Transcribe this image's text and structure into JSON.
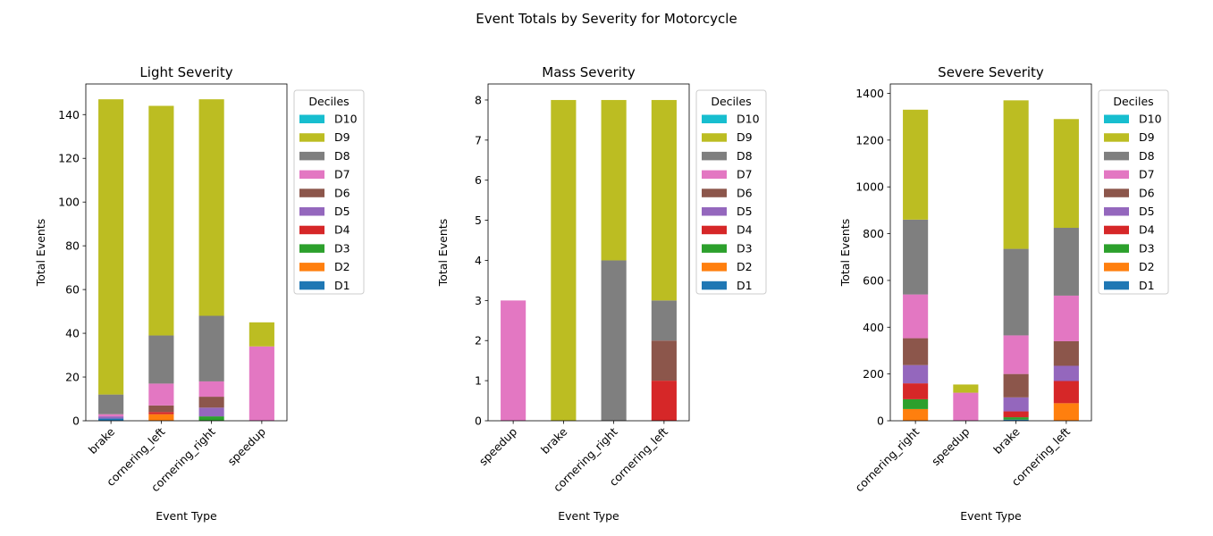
{
  "figure": {
    "title": "Event Totals by Severity for Motorcycle"
  },
  "chart_data": [
    {
      "type": "bar",
      "stacked": true,
      "title": "Light Severity",
      "xlabel": "Event Type",
      "ylabel": "Total Events",
      "ylim": [
        0,
        154
      ],
      "yticks": [
        0,
        20,
        40,
        60,
        80,
        100,
        120,
        140
      ],
      "categories": [
        "brake",
        "cornering_left",
        "cornering_right",
        "speedup"
      ],
      "legend": {
        "title": "Deciles",
        "placement": "outside-right"
      },
      "series": [
        {
          "name": "D1",
          "color": "#1f77b4",
          "values": [
            1,
            0,
            0,
            0
          ]
        },
        {
          "name": "D2",
          "color": "#ff7f0e",
          "values": [
            0,
            3,
            0,
            0
          ]
        },
        {
          "name": "D3",
          "color": "#2ca02c",
          "values": [
            0,
            0,
            2,
            0
          ]
        },
        {
          "name": "D4",
          "color": "#d62728",
          "values": [
            0,
            1,
            0,
            0
          ]
        },
        {
          "name": "D5",
          "color": "#9467bd",
          "values": [
            1,
            0,
            4,
            0
          ]
        },
        {
          "name": "D6",
          "color": "#8c564b",
          "values": [
            0,
            3,
            5,
            0
          ]
        },
        {
          "name": "D7",
          "color": "#e377c2",
          "values": [
            1,
            10,
            7,
            34
          ]
        },
        {
          "name": "D8",
          "color": "#7f7f7f",
          "values": [
            9,
            22,
            30,
            0
          ]
        },
        {
          "name": "D9",
          "color": "#bcbd22",
          "values": [
            135,
            105,
            99,
            11
          ]
        },
        {
          "name": "D10",
          "color": "#17becf",
          "values": [
            0,
            0,
            0,
            0
          ]
        }
      ]
    },
    {
      "type": "bar",
      "stacked": true,
      "title": "Mass Severity",
      "xlabel": "Event Type",
      "ylabel": "Total Events",
      "ylim": [
        0,
        8.4
      ],
      "yticks": [
        0,
        1,
        2,
        3,
        4,
        5,
        6,
        7,
        8
      ],
      "categories": [
        "speedup",
        "brake",
        "cornering_right",
        "cornering_left"
      ],
      "legend": {
        "title": "Deciles",
        "placement": "outside-right"
      },
      "series": [
        {
          "name": "D1",
          "color": "#1f77b4",
          "values": [
            0,
            0,
            0,
            0
          ]
        },
        {
          "name": "D2",
          "color": "#ff7f0e",
          "values": [
            0,
            0,
            0,
            0
          ]
        },
        {
          "name": "D3",
          "color": "#2ca02c",
          "values": [
            0,
            0,
            0,
            0
          ]
        },
        {
          "name": "D4",
          "color": "#d62728",
          "values": [
            0,
            0,
            0,
            1
          ]
        },
        {
          "name": "D5",
          "color": "#9467bd",
          "values": [
            0,
            0,
            0,
            0
          ]
        },
        {
          "name": "D6",
          "color": "#8c564b",
          "values": [
            0,
            0,
            0,
            1
          ]
        },
        {
          "name": "D7",
          "color": "#e377c2",
          "values": [
            3,
            0,
            0,
            0
          ]
        },
        {
          "name": "D8",
          "color": "#7f7f7f",
          "values": [
            0,
            0,
            4,
            1
          ]
        },
        {
          "name": "D9",
          "color": "#bcbd22",
          "values": [
            0,
            8,
            4,
            5
          ]
        },
        {
          "name": "D10",
          "color": "#17becf",
          "values": [
            0,
            0,
            0,
            0
          ]
        }
      ]
    },
    {
      "type": "bar",
      "stacked": true,
      "title": "Severe Severity",
      "xlabel": "Event Type",
      "ylabel": "Total Events",
      "ylim": [
        0,
        1440
      ],
      "yticks": [
        0,
        200,
        400,
        600,
        800,
        1000,
        1200,
        1400
      ],
      "categories": [
        "cornering_right",
        "speedup",
        "brake",
        "cornering_left"
      ],
      "legend": {
        "title": "Deciles",
        "placement": "outside-right"
      },
      "series": [
        {
          "name": "D1",
          "color": "#1f77b4",
          "values": [
            0,
            0,
            5,
            0
          ]
        },
        {
          "name": "D2",
          "color": "#ff7f0e",
          "values": [
            50,
            0,
            0,
            75
          ]
        },
        {
          "name": "D3",
          "color": "#2ca02c",
          "values": [
            42,
            0,
            10,
            0
          ]
        },
        {
          "name": "D4",
          "color": "#d62728",
          "values": [
            68,
            0,
            25,
            95
          ]
        },
        {
          "name": "D5",
          "color": "#9467bd",
          "values": [
            78,
            0,
            60,
            65
          ]
        },
        {
          "name": "D6",
          "color": "#8c564b",
          "values": [
            115,
            0,
            100,
            105
          ]
        },
        {
          "name": "D7",
          "color": "#e377c2",
          "values": [
            187,
            120,
            165,
            195
          ]
        },
        {
          "name": "D8",
          "color": "#7f7f7f",
          "values": [
            320,
            0,
            370,
            290
          ]
        },
        {
          "name": "D9",
          "color": "#bcbd22",
          "values": [
            470,
            35,
            635,
            465
          ]
        },
        {
          "name": "D10",
          "color": "#17becf",
          "values": [
            0,
            0,
            0,
            0
          ]
        }
      ]
    }
  ]
}
